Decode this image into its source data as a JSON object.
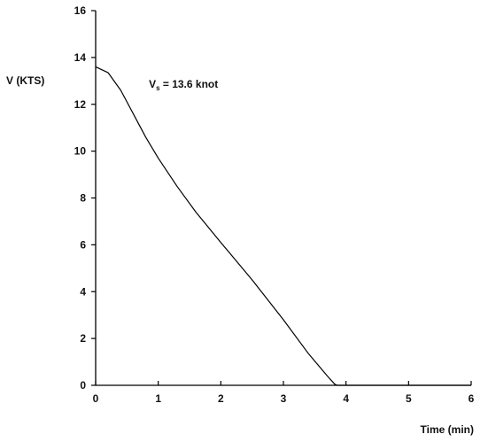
{
  "chart_data": {
    "type": "line",
    "title": "",
    "xlabel": "Time (min)",
    "ylabel": "V (KTS)",
    "xlim": [
      0,
      6
    ],
    "ylim": [
      0,
      16
    ],
    "x_ticks": [
      "0",
      "1",
      "2",
      "3",
      "4",
      "5",
      "6"
    ],
    "y_ticks": [
      "0",
      "2",
      "4",
      "6",
      "8",
      "10",
      "12",
      "14",
      "16"
    ],
    "grid": false,
    "legend": "none",
    "annotation": {
      "prefix": "V",
      "subscript": "s",
      "suffix": " = 13.6 knot",
      "at": [
        0.85,
        12.7
      ]
    },
    "series": [
      {
        "x": [
          0,
          0.2,
          0.4,
          0.6,
          0.8,
          1.0,
          1.3,
          1.6,
          2.0,
          2.5,
          3.0,
          3.4,
          3.7,
          3.82,
          3.86,
          4.0,
          5.0,
          6.0
        ],
        "y": [
          13.6,
          13.35,
          12.6,
          11.6,
          10.6,
          9.7,
          8.5,
          7.4,
          6.1,
          4.5,
          2.8,
          1.35,
          0.4,
          0.05,
          0.0,
          0.0,
          0.0,
          0.0
        ]
      }
    ],
    "colors": {
      "line": "#000000",
      "axis": "#000000"
    }
  }
}
